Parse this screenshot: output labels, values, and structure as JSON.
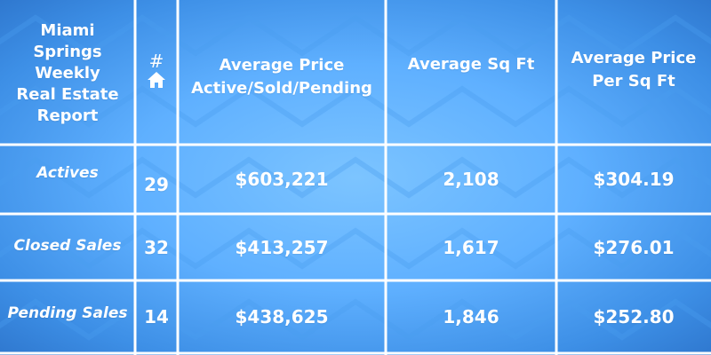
{
  "title_lines": [
    "Miami",
    "Springs",
    "Weekly",
    "Real Estate",
    "Report"
  ],
  "headers": {
    "count_symbol": "#",
    "count_icon": "house-icon",
    "avg_price_lines": [
      "Average Price",
      "Active/Sold/Pending"
    ],
    "avg_sqft": "Average Sq Ft",
    "avg_price_sqft_lines": [
      "Average Price",
      "Per Sq Ft"
    ]
  },
  "rows": [
    {
      "label": "Actives",
      "count": "29",
      "avg_price": "$603,221",
      "avg_sqft": "2,108",
      "price_per_sqft": "$304.19"
    },
    {
      "label": "Closed Sales",
      "count": "32",
      "avg_price": "$413,257",
      "avg_sqft": "1,617",
      "price_per_sqft": "$276.01"
    },
    {
      "label": "Pending Sales",
      "count": "14",
      "avg_price": "$438,625",
      "avg_sqft": "1,846",
      "price_per_sqft": "$252.80"
    }
  ],
  "colors": {
    "background": "#5fb0ff",
    "grid": "#ffffff",
    "text": "#ffffff"
  }
}
